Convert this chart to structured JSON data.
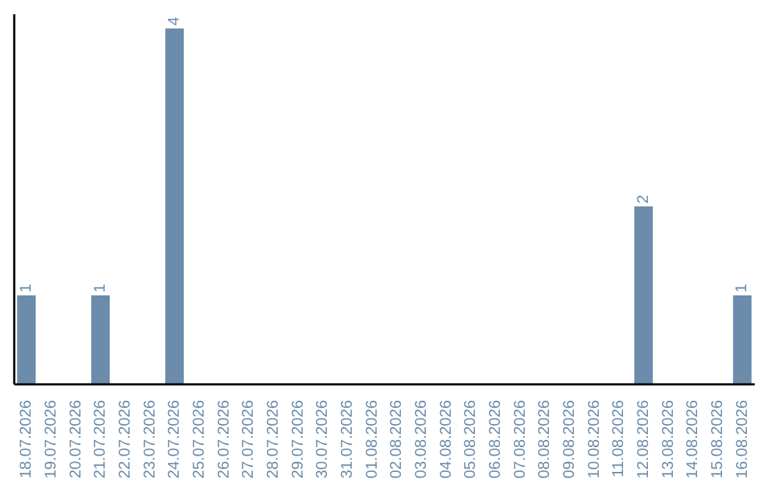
{
  "chart_data": {
    "type": "bar",
    "categories": [
      "18.07.2026",
      "19.07.2026",
      "20.07.2026",
      "21.07.2026",
      "22.07.2026",
      "23.07.2026",
      "24.07.2026",
      "25.07.2026",
      "26.07.2026",
      "27.07.2026",
      "28.07.2026",
      "29.07.2026",
      "30.07.2026",
      "31.07.2026",
      "01.08.2026",
      "02.08.2026",
      "03.08.2026",
      "04.08.2026",
      "05.08.2026",
      "06.08.2026",
      "07.08.2026",
      "08.08.2026",
      "09.08.2026",
      "10.08.2026",
      "11.08.2026",
      "12.08.2026",
      "13.08.2026",
      "14.08.2026",
      "15.08.2026",
      "16.08.2026"
    ],
    "values": [
      1,
      0,
      0,
      1,
      0,
      0,
      4,
      0,
      0,
      0,
      0,
      0,
      0,
      0,
      0,
      0,
      0,
      0,
      0,
      0,
      0,
      0,
      0,
      0,
      0,
      2,
      0,
      0,
      0,
      1
    ],
    "value_labels": [
      "1",
      null,
      null,
      "1",
      null,
      null,
      "4",
      null,
      null,
      null,
      null,
      null,
      null,
      null,
      null,
      null,
      null,
      null,
      null,
      null,
      null,
      null,
      null,
      null,
      null,
      "2",
      null,
      null,
      null,
      "1"
    ],
    "color": "#6b8cab",
    "grid": false,
    "legend": false
  }
}
